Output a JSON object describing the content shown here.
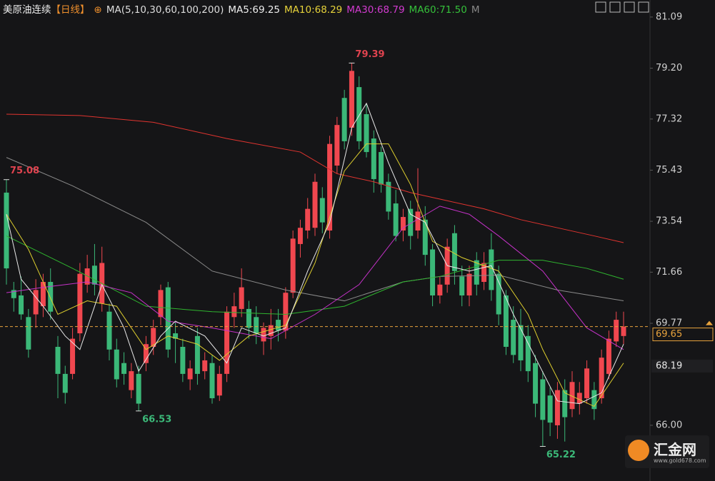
{
  "header": {
    "symbol": "美原油连续",
    "period": "【日线】",
    "ma_setting": "MA(5,10,30,60,100,200)",
    "ma_values": [
      "MA5:69.25",
      "MA10:68.29",
      "MA30:68.79",
      "MA60:71.50"
    ],
    "more": "M"
  },
  "watermark": {
    "name": "汇金网",
    "url": "www.gold678.com"
  },
  "chart_data": {
    "type": "candlestick",
    "ylim": [
      64.31,
      81.72
    ],
    "yticks": [
      81.09,
      {
        "value": 79.2,
        "label": "79.20"
      },
      77.32,
      75.43,
      73.54,
      71.66,
      69.77,
      {
        "value": 66,
        "label": "66.00"
      }
    ],
    "up_color": "#f0474f",
    "down_color": "#3bb878",
    "candles": [
      [
        74.6,
        75.08,
        71.2,
        71.8
      ],
      [
        71.0,
        71.3,
        70.2,
        70.7
      ],
      [
        70.8,
        71.5,
        69.9,
        70.1
      ],
      [
        70.0,
        70.3,
        68.5,
        68.8
      ],
      [
        70.1,
        71.4,
        69.6,
        71.0
      ],
      [
        70.4,
        71.6,
        70.0,
        71.3
      ],
      [
        71.3,
        71.8,
        69.9,
        70.2
      ],
      [
        68.9,
        69.3,
        67.0,
        67.9
      ],
      [
        67.9,
        68.2,
        66.8,
        67.2
      ],
      [
        67.9,
        69.6,
        67.7,
        69.2
      ],
      [
        69.4,
        72.0,
        69.1,
        71.6
      ],
      [
        71.2,
        72.3,
        70.9,
        71.8
      ],
      [
        71.9,
        72.7,
        70.8,
        71.2
      ],
      [
        70.5,
        72.6,
        70.2,
        72.0
      ],
      [
        70.2,
        70.5,
        68.4,
        68.8
      ],
      [
        68.8,
        69.2,
        67.4,
        67.7
      ],
      [
        68.3,
        68.7,
        67.5,
        67.9
      ],
      [
        67.3,
        68.3,
        67.0,
        68.0
      ],
      [
        67.9,
        68.2,
        66.53,
        66.8
      ],
      [
        68.3,
        69.3,
        68.0,
        69.0
      ],
      [
        68.9,
        69.9,
        68.6,
        69.6
      ],
      [
        70.0,
        71.2,
        69.7,
        71.0
      ],
      [
        71.1,
        71.3,
        68.5,
        68.8
      ],
      [
        69.4,
        69.8,
        68.3,
        69.2
      ],
      [
        68.9,
        69.2,
        67.6,
        67.9
      ],
      [
        67.7,
        68.4,
        67.3,
        68.1
      ],
      [
        69.3,
        69.6,
        67.5,
        67.9
      ],
      [
        68.0,
        68.7,
        67.7,
        68.4
      ],
      [
        68.3,
        68.6,
        66.8,
        67.0
      ],
      [
        67.1,
        68.2,
        66.9,
        67.9
      ],
      [
        67.9,
        70.4,
        67.6,
        70.2
      ],
      [
        70.0,
        70.9,
        69.6,
        70.4
      ],
      [
        70.3,
        71.8,
        70.0,
        71.1
      ],
      [
        70.3,
        70.6,
        69.2,
        69.6
      ],
      [
        70.0,
        70.4,
        69.0,
        69.4
      ],
      [
        69.1,
        69.8,
        68.6,
        69.6
      ],
      [
        69.3,
        70.3,
        68.8,
        69.7
      ],
      [
        69.9,
        70.3,
        69.1,
        69.5
      ],
      [
        69.5,
        71.1,
        69.2,
        70.9
      ],
      [
        70.9,
        73.2,
        70.7,
        72.9
      ],
      [
        72.7,
        73.6,
        72.2,
        73.3
      ],
      [
        73.2,
        74.4,
        72.9,
        74.0
      ],
      [
        73.3,
        75.3,
        73.0,
        75.0
      ],
      [
        74.4,
        74.8,
        73.1,
        73.5
      ],
      [
        73.2,
        76.7,
        72.9,
        76.4
      ],
      [
        75.6,
        77.4,
        75.3,
        77.1
      ],
      [
        78.1,
        78.4,
        76.2,
        76.5
      ],
      [
        77.0,
        79.39,
        76.7,
        79.1
      ],
      [
        78.5,
        78.9,
        76.2,
        76.5
      ],
      [
        77.5,
        77.9,
        75.9,
        76.1
      ],
      [
        76.6,
        76.9,
        74.6,
        75.1
      ],
      [
        76.1,
        76.3,
        74.6,
        74.9
      ],
      [
        75.0,
        75.3,
        73.6,
        73.9
      ],
      [
        74.2,
        74.7,
        72.8,
        73.0
      ],
      [
        73.2,
        74.0,
        72.8,
        73.7
      ],
      [
        74.0,
        74.3,
        72.5,
        73.0
      ],
      [
        73.2,
        75.5,
        72.9,
        73.9
      ],
      [
        73.6,
        74.1,
        71.9,
        72.3
      ],
      [
        72.5,
        72.7,
        70.4,
        70.8
      ],
      [
        70.8,
        71.5,
        70.5,
        71.2
      ],
      [
        71.2,
        72.9,
        70.9,
        72.6
      ],
      [
        73.1,
        73.4,
        71.2,
        71.7
      ],
      [
        71.5,
        71.9,
        70.4,
        70.8
      ],
      [
        70.8,
        71.9,
        70.4,
        71.6
      ],
      [
        72.1,
        72.4,
        70.8,
        71.2
      ],
      [
        71.3,
        72.4,
        71.0,
        72.0
      ],
      [
        72.5,
        73.1,
        70.6,
        71.0
      ],
      [
        71.6,
        71.9,
        69.7,
        70.1
      ],
      [
        70.8,
        71.0,
        68.6,
        68.9
      ],
      [
        69.9,
        70.4,
        68.3,
        68.6
      ],
      [
        69.7,
        70.3,
        68.0,
        68.4
      ],
      [
        69.3,
        69.7,
        67.6,
        68.0
      ],
      [
        68.3,
        68.6,
        66.3,
        66.8
      ],
      [
        67.7,
        68.0,
        65.22,
        66.2
      ],
      [
        67.1,
        67.4,
        65.6,
        66.1
      ],
      [
        66.0,
        67.6,
        65.5,
        67.3
      ],
      [
        67.3,
        67.7,
        65.4,
        66.3
      ],
      [
        66.6,
        68.0,
        66.3,
        67.6
      ],
      [
        66.8,
        67.6,
        66.4,
        67.2
      ],
      [
        67.0,
        68.4,
        66.8,
        68.1
      ],
      [
        67.3,
        67.6,
        66.2,
        66.6
      ],
      [
        67.0,
        68.8,
        66.8,
        68.5
      ],
      [
        67.9,
        69.5,
        67.7,
        69.2
      ],
      [
        69.1,
        70.2,
        68.9,
        69.9
      ],
      [
        69.3,
        70.2,
        69.0,
        69.65
      ]
    ],
    "moving_averages": [
      {
        "name": "MA200",
        "color": "#e0342f",
        "x": [
          0,
          10,
          20,
          30,
          40,
          45,
          50,
          55,
          60,
          65,
          70,
          75,
          80,
          84
        ],
        "values": [
          77.5,
          77.45,
          77.2,
          76.6,
          76.1,
          75.3,
          75.0,
          74.6,
          74.3,
          74.0,
          73.6,
          73.3,
          73.0,
          72.75
        ]
      },
      {
        "name": "MA100",
        "color": "#8a8a8a",
        "x": [
          0,
          9,
          19,
          28,
          38,
          46,
          54,
          59,
          67,
          75,
          84
        ],
        "values": [
          75.9,
          74.85,
          73.5,
          71.7,
          71.0,
          70.6,
          71.3,
          71.5,
          71.55,
          71.0,
          70.6
        ]
      },
      {
        "name": "MA60",
        "color": "#2fb52f",
        "x": [
          0,
          9,
          19,
          28,
          38,
          46,
          54,
          59,
          67,
          73,
          79,
          84
        ],
        "values": [
          73.0,
          71.8,
          70.4,
          70.2,
          70.1,
          70.4,
          71.3,
          71.5,
          72.1,
          72.1,
          71.8,
          71.4
        ]
      },
      {
        "name": "MA30",
        "color": "#c532c8",
        "x": [
          0,
          5,
          11,
          17,
          22,
          28,
          36,
          42,
          48,
          54,
          59,
          63,
          67,
          73,
          79,
          84
        ],
        "values": [
          70.9,
          71.1,
          71.3,
          70.9,
          69.85,
          69.6,
          69.2,
          70.1,
          71.2,
          73.3,
          74.1,
          73.8,
          73.0,
          71.7,
          69.6,
          68.8
        ]
      },
      {
        "name": "MA10",
        "color": "#dccd2e",
        "x": [
          0,
          3,
          7,
          11,
          15,
          19,
          22,
          26,
          29,
          33,
          38,
          42,
          46,
          49,
          52,
          55,
          58,
          62,
          67,
          71,
          73,
          76,
          80,
          84
        ],
        "values": [
          73.8,
          72.5,
          70.1,
          70.6,
          70.4,
          68.8,
          69.3,
          69.0,
          68.4,
          69.3,
          69.7,
          72.0,
          75.4,
          76.4,
          76.4,
          74.9,
          72.8,
          72.2,
          71.7,
          70.1,
          68.8,
          67.2,
          66.7,
          68.3
        ]
      },
      {
        "name": "MA5",
        "color": "#e8e8e8",
        "x": [
          0,
          2,
          5,
          8,
          10,
          13,
          16,
          18,
          21,
          23,
          27,
          30,
          32,
          35,
          38,
          41,
          44,
          47,
          49,
          52,
          55,
          57,
          60,
          63,
          66,
          69,
          72,
          75,
          78,
          81,
          84
        ],
        "values": [
          73.8,
          71.4,
          70.4,
          69.3,
          68.8,
          71.2,
          69.6,
          68.0,
          69.3,
          69.85,
          69.3,
          68.3,
          69.6,
          69.3,
          69.6,
          71.7,
          73.5,
          77.0,
          77.9,
          75.7,
          73.8,
          73.5,
          71.9,
          71.7,
          71.9,
          70.1,
          68.5,
          66.9,
          66.8,
          67.2,
          69.0
        ]
      }
    ],
    "extremes": [
      {
        "value": 79.39,
        "index": 47,
        "kind": "high",
        "color": "#e0434f"
      },
      {
        "value": 75.08,
        "index": 0,
        "kind": "high",
        "color": "#e0434f"
      },
      {
        "value": 66.53,
        "index": 18,
        "kind": "low",
        "color": "#3bb878"
      },
      {
        "value": 65.22,
        "index": 73,
        "kind": "low",
        "color": "#3bb878"
      }
    ],
    "last_price": 69.65,
    "last_color": "#e8a33d",
    "marker_price": 68.19
  }
}
